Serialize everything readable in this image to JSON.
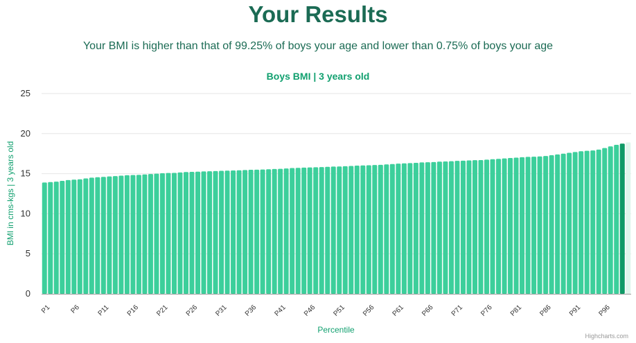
{
  "page": {
    "title": "Your Results",
    "subtitle": "Your BMI is higher than that of 99.25% of boys your age and lower than 0.75% of boys your age"
  },
  "colors": {
    "heading": "#1b6b54",
    "accent": "#11a06f",
    "bar": "#3ccf9b",
    "bar_highlight": "#0f9a66",
    "bar_faded": "#dff6ec",
    "grid": "#e6e6e6",
    "axis": "#999999"
  },
  "credits": "Highcharts.com",
  "chart_data": {
    "type": "bar",
    "title": "Boys BMI | 3 years old",
    "xlabel": "Percentile",
    "ylabel": "BMI in cms-kgs | 3 years old",
    "ylim": [
      0,
      25
    ],
    "yticks": [
      0,
      5,
      10,
      15,
      20,
      25
    ],
    "grid": true,
    "categories": [
      "P1",
      "P2",
      "P3",
      "P4",
      "P5",
      "P6",
      "P7",
      "P8",
      "P9",
      "P10",
      "P11",
      "P12",
      "P13",
      "P14",
      "P15",
      "P16",
      "P17",
      "P18",
      "P19",
      "P20",
      "P21",
      "P22",
      "P23",
      "P24",
      "P25",
      "P26",
      "P27",
      "P28",
      "P29",
      "P30",
      "P31",
      "P32",
      "P33",
      "P34",
      "P35",
      "P36",
      "P37",
      "P38",
      "P39",
      "P40",
      "P41",
      "P42",
      "P43",
      "P44",
      "P45",
      "P46",
      "P47",
      "P48",
      "P49",
      "P50",
      "P51",
      "P52",
      "P53",
      "P54",
      "P55",
      "P56",
      "P57",
      "P58",
      "P59",
      "P60",
      "P61",
      "P62",
      "P63",
      "P64",
      "P65",
      "P66",
      "P67",
      "P68",
      "P69",
      "P70",
      "P71",
      "P72",
      "P73",
      "P74",
      "P75",
      "P76",
      "P77",
      "P78",
      "P79",
      "P80",
      "P81",
      "P82",
      "P83",
      "P84",
      "P85",
      "P86",
      "P87",
      "P88",
      "P89",
      "P90",
      "P91",
      "P92",
      "P93",
      "P94",
      "P95",
      "P96",
      "P97",
      "P98",
      "P99",
      "P100"
    ],
    "visible_tick_labels": [
      "P1",
      "P6",
      "P11",
      "P16",
      "P21",
      "P26",
      "P31",
      "P36",
      "P41",
      "P46",
      "P51",
      "P56",
      "P61",
      "P66",
      "P71",
      "P76",
      "P81",
      "P86",
      "P91",
      "P96"
    ],
    "values": [
      13.9,
      13.95,
      14.0,
      14.1,
      14.2,
      14.25,
      14.3,
      14.4,
      14.5,
      14.55,
      14.6,
      14.65,
      14.7,
      14.75,
      14.8,
      14.82,
      14.85,
      14.9,
      14.95,
      15.0,
      15.05,
      15.08,
      15.1,
      15.15,
      15.2,
      15.22,
      15.25,
      15.28,
      15.3,
      15.32,
      15.35,
      15.38,
      15.4,
      15.42,
      15.45,
      15.48,
      15.5,
      15.52,
      15.55,
      15.58,
      15.6,
      15.65,
      15.7,
      15.72,
      15.75,
      15.78,
      15.8,
      15.82,
      15.85,
      15.88,
      15.9,
      15.93,
      15.96,
      16.0,
      16.02,
      16.05,
      16.08,
      16.1,
      16.15,
      16.2,
      16.25,
      16.28,
      16.32,
      16.35,
      16.4,
      16.42,
      16.45,
      16.5,
      16.52,
      16.55,
      16.6,
      16.62,
      16.65,
      16.68,
      16.7,
      16.75,
      16.8,
      16.85,
      16.9,
      16.95,
      17.0,
      17.05,
      17.1,
      17.12,
      17.15,
      17.2,
      17.3,
      17.4,
      17.5,
      17.6,
      17.7,
      17.8,
      17.85,
      17.9,
      18.0,
      18.2,
      18.4,
      18.6,
      18.75,
      18.9
    ],
    "highlight_category": "P99"
  }
}
